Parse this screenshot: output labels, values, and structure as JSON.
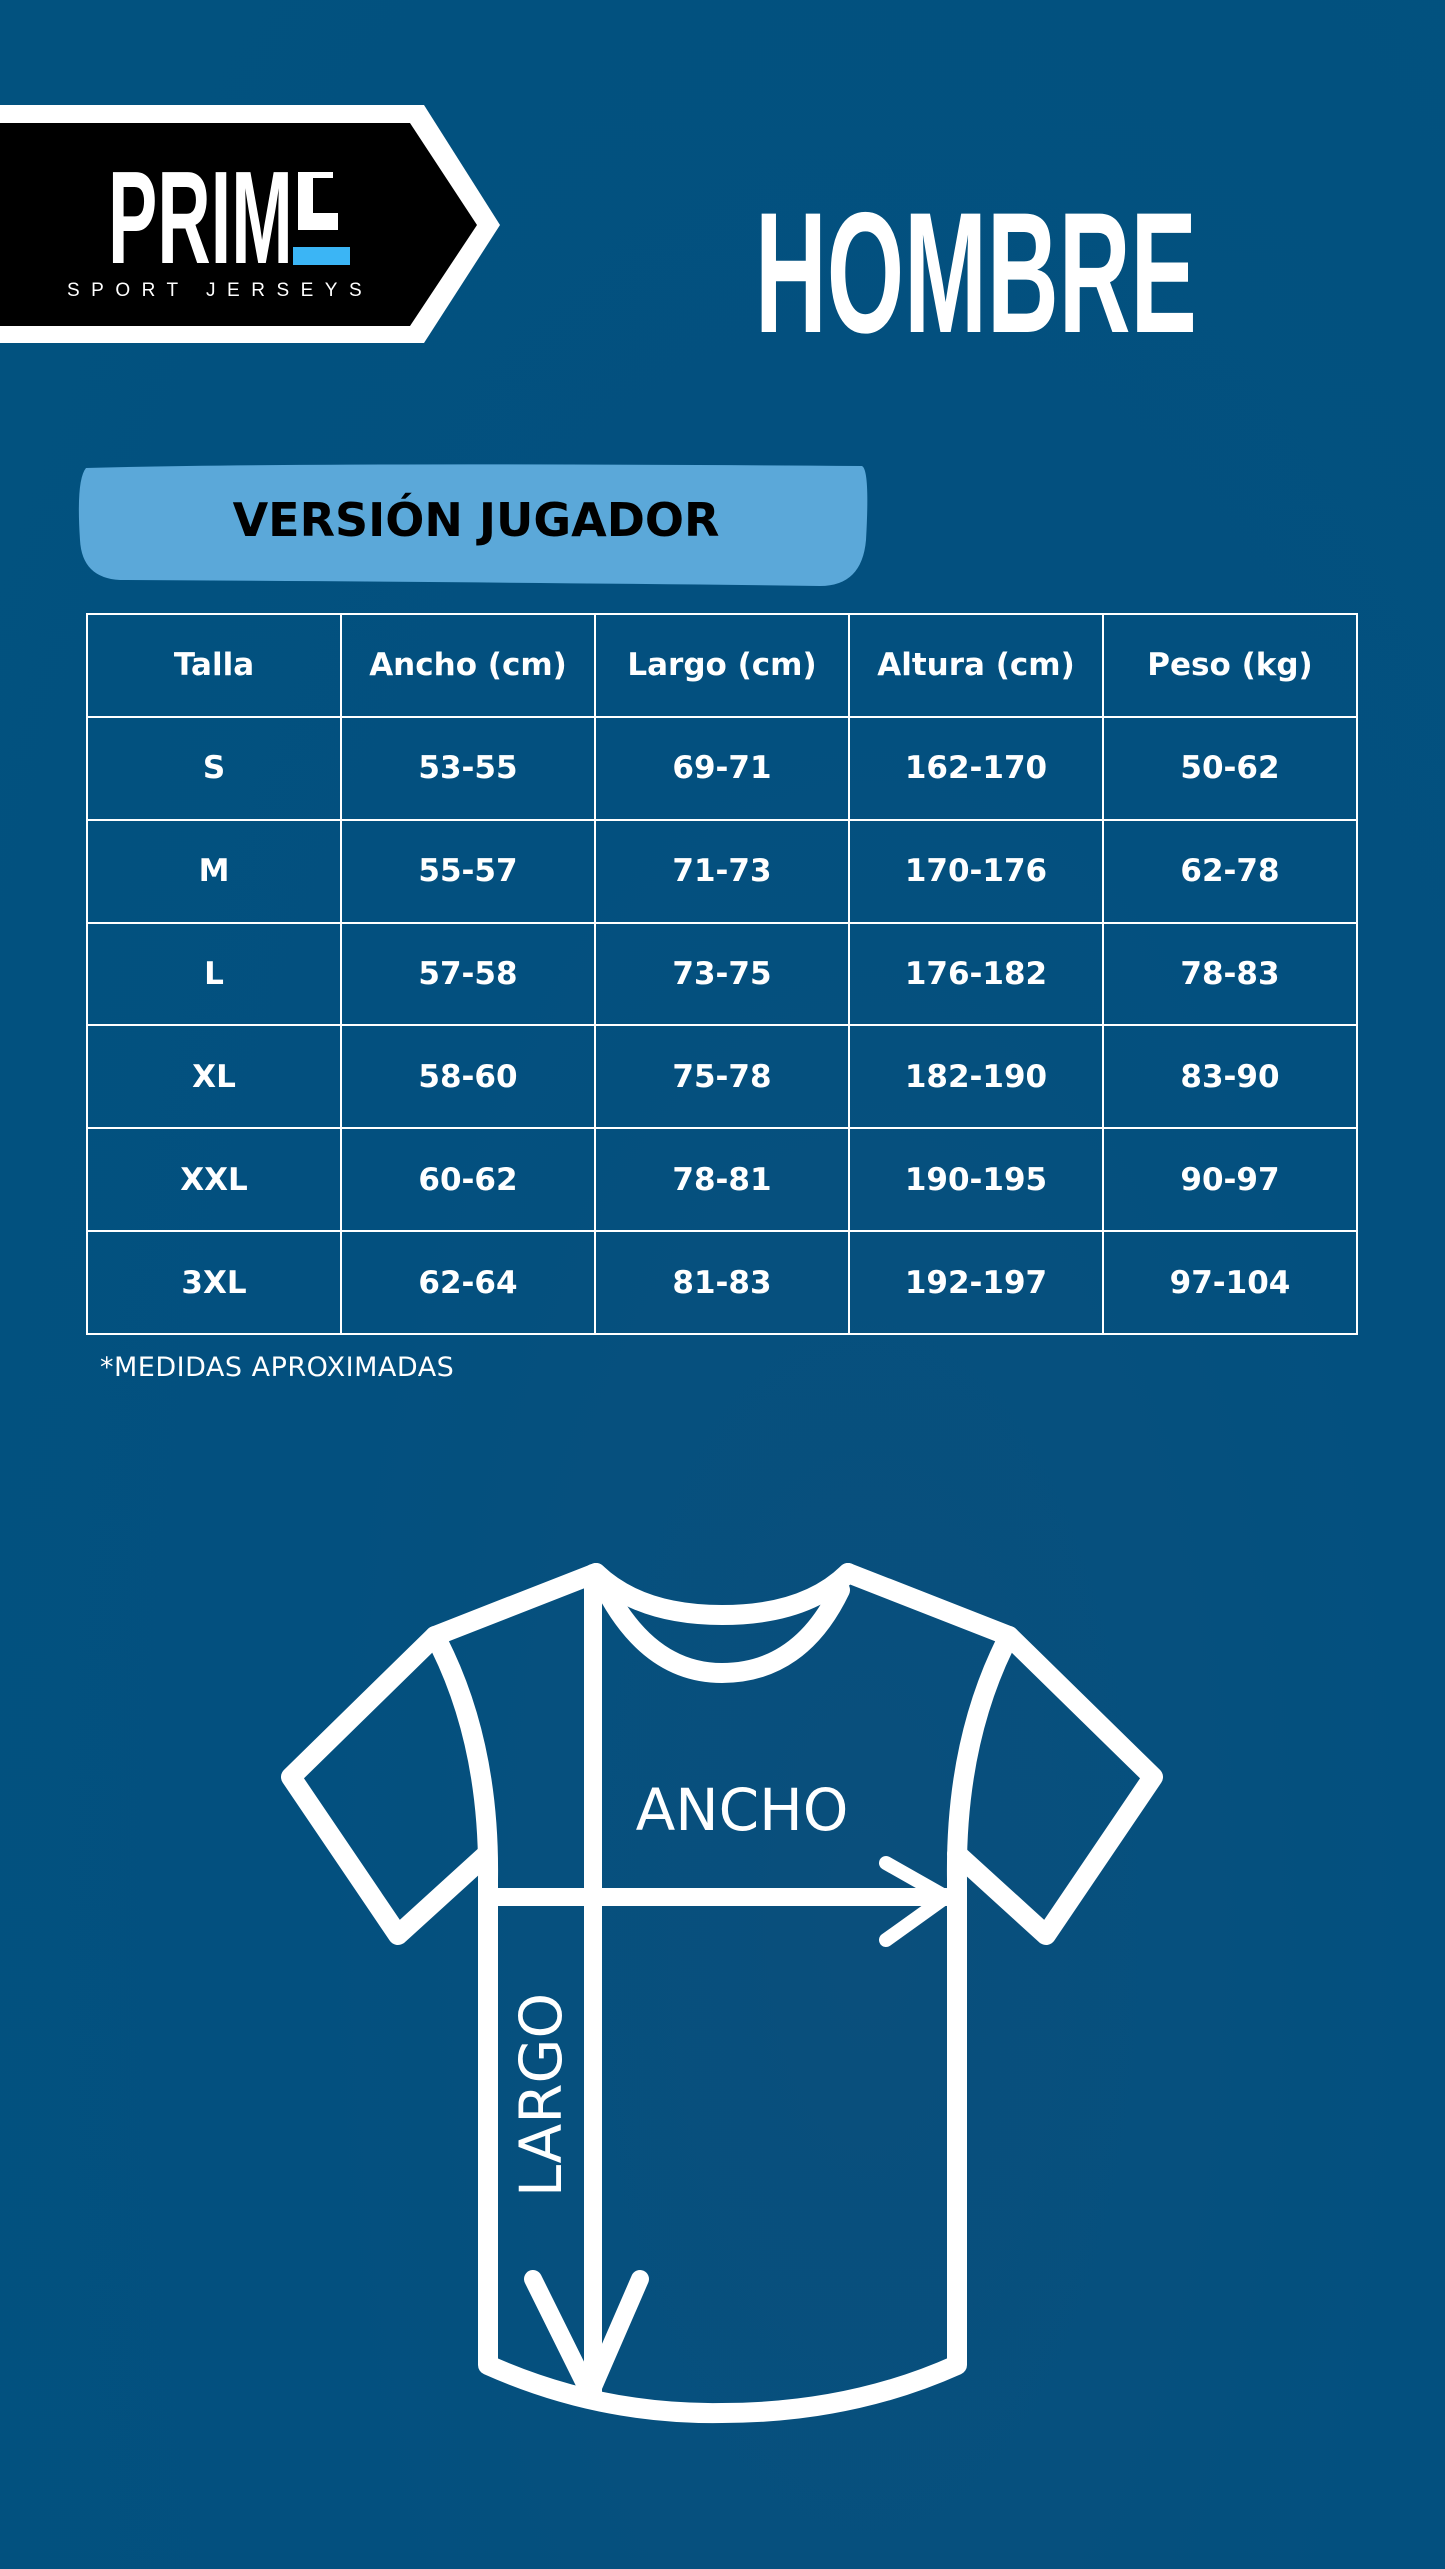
{
  "brand": {
    "logo_text": "PRIME",
    "logo_subtitle": "SPORT JERSEYS",
    "accent_color": "#3bb5f5"
  },
  "title": "HOMBRE",
  "section": {
    "label": "VERSIÓN JUGADOR",
    "color": "#5ba8d9"
  },
  "table": {
    "headers": [
      "Talla",
      "Ancho (cm)",
      "Largo (cm)",
      "Altura (cm)",
      "Peso (kg)"
    ],
    "rows": [
      [
        "S",
        "53-55",
        "69-71",
        "162-170",
        "50-62"
      ],
      [
        "M",
        "55-57",
        "71-73",
        "170-176",
        "62-78"
      ],
      [
        "L",
        "57-58",
        "73-75",
        "176-182",
        "78-83"
      ],
      [
        "XL",
        "58-60",
        "75-78",
        "182-190",
        "83-90"
      ],
      [
        "XXL",
        "60-62",
        "78-81",
        "190-195",
        "90-97"
      ],
      [
        "3XL",
        "62-64",
        "81-83",
        "192-197",
        "97-104"
      ]
    ]
  },
  "note": "*MEDIDAS APROXIMADAS",
  "diagram": {
    "width_label": "ANCHO",
    "length_label": "LARGO"
  },
  "colors": {
    "background": "#02517f"
  }
}
